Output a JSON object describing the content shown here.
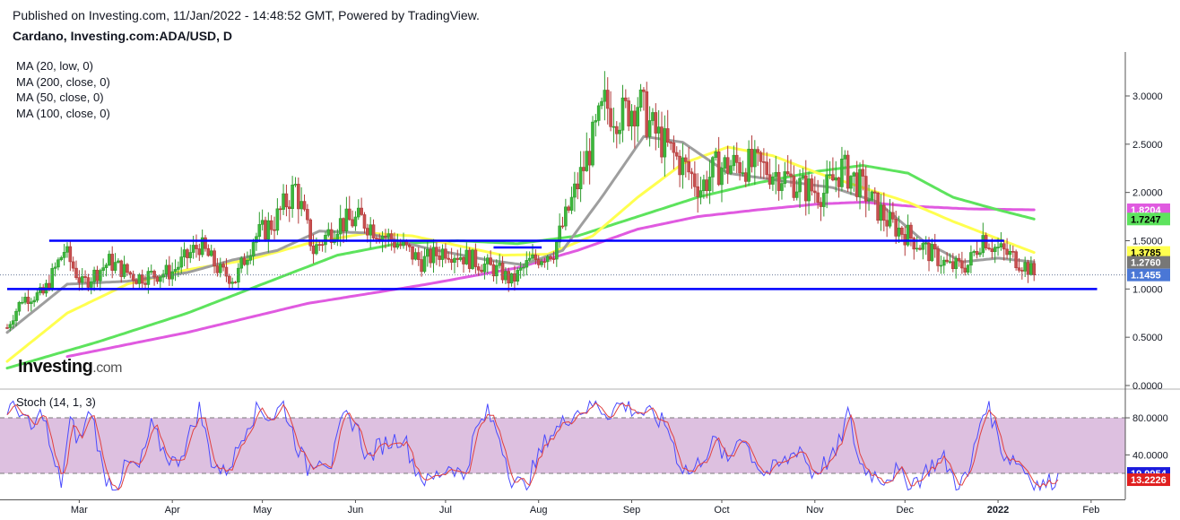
{
  "header": {
    "published": "Published on Investing.com, 11/Jan/2022 - 14:48:52 GMT, Powered by TradingView.",
    "symbol": "Cardano, Investing.com:ADA/USD, D"
  },
  "legend": {
    "ma": [
      "MA (20, low, 0)",
      "MA (200, close, 0)",
      "MA (50, close, 0)",
      "MA (100, close, 0)"
    ],
    "stoch": "Stoch (14, 1, 3)"
  },
  "logo": {
    "brand": "Investing",
    "suffix": ".com"
  },
  "colors": {
    "ma20_low": "#9e9e9e",
    "ma200_close": "#e05ae0",
    "ma50_close": "#ffff4f",
    "ma100_close": "#5de35d",
    "support_resistance": "#0000ff",
    "candle_up": "#2e9c2e",
    "candle_down": "#b23a3a",
    "stoch_k": "#4a4aff",
    "stoch_d": "#e04040",
    "stoch_band": "#d9b9dd"
  },
  "chart_data": [
    {
      "type": "candlestick",
      "ylim": [
        0,
        3.4
      ],
      "yticks": [
        0,
        0.5,
        1.0,
        1.5,
        2.0,
        2.5,
        3.0
      ],
      "ytick_labels": [
        "0.0000",
        "0.5000",
        "1.0000",
        "1.5000",
        "2.0000",
        "2.5000",
        "3.0000"
      ],
      "x_range": [
        "2022-02-05",
        "2022-02-05"
      ],
      "xticks": [
        {
          "label": "Mar",
          "day": 24
        },
        {
          "label": "Apr",
          "day": 55
        },
        {
          "label": "May",
          "day": 85
        },
        {
          "label": "Jun",
          "day": 116
        },
        {
          "label": "Jul",
          "day": 146
        },
        {
          "label": "Aug",
          "day": 177
        },
        {
          "label": "Sep",
          "day": 208
        },
        {
          "label": "Oct",
          "day": 238
        },
        {
          "label": "Nov",
          "day": 269
        },
        {
          "label": "Dec",
          "day": 299
        },
        {
          "label": "2022",
          "day": 330
        },
        {
          "label": "Feb",
          "day": 361
        }
      ],
      "day_range": [
        0,
        370
      ],
      "price_keypoints": [
        [
          0,
          0.6
        ],
        [
          5,
          0.9
        ],
        [
          12,
          0.95
        ],
        [
          19,
          1.4
        ],
        [
          25,
          1.05
        ],
        [
          34,
          1.28
        ],
        [
          43,
          1.12
        ],
        [
          55,
          1.18
        ],
        [
          64,
          1.46
        ],
        [
          71,
          1.18
        ],
        [
          76,
          1.1
        ],
        [
          82,
          1.52
        ],
        [
          89,
          1.7
        ],
        [
          96,
          2.05
        ],
        [
          102,
          1.4
        ],
        [
          110,
          1.68
        ],
        [
          118,
          1.72
        ],
        [
          126,
          1.55
        ],
        [
          132,
          1.43
        ],
        [
          138,
          1.28
        ],
        [
          146,
          1.41
        ],
        [
          155,
          1.3
        ],
        [
          164,
          1.18
        ],
        [
          168,
          1.08
        ],
        [
          174,
          1.28
        ],
        [
          182,
          1.4
        ],
        [
          187,
          1.82
        ],
        [
          193,
          2.35
        ],
        [
          199,
          2.9
        ],
        [
          205,
          2.8
        ],
        [
          210,
          2.95
        ],
        [
          215,
          2.65
        ],
        [
          220,
          2.45
        ],
        [
          226,
          2.25
        ],
        [
          231,
          2.05
        ],
        [
          236,
          2.25
        ],
        [
          244,
          2.3
        ],
        [
          252,
          2.25
        ],
        [
          258,
          2.18
        ],
        [
          265,
          2.05
        ],
        [
          272,
          2.0
        ],
        [
          278,
          2.25
        ],
        [
          284,
          2.08
        ],
        [
          288,
          1.9
        ],
        [
          294,
          1.68
        ],
        [
          300,
          1.56
        ],
        [
          307,
          1.38
        ],
        [
          314,
          1.23
        ],
        [
          320,
          1.25
        ],
        [
          325,
          1.55
        ],
        [
          329,
          1.43
        ],
        [
          335,
          1.33
        ],
        [
          340,
          1.22
        ],
        [
          342,
          1.1455
        ]
      ],
      "moving_averages": [
        {
          "name": "MA (20, low, 0)",
          "color_key": "ma20_low",
          "points": [
            [
              0,
              0.55
            ],
            [
              20,
              1.05
            ],
            [
              40,
              1.08
            ],
            [
              60,
              1.17
            ],
            [
              75,
              1.3
            ],
            [
              90,
              1.4
            ],
            [
              104,
              1.6
            ],
            [
              120,
              1.58
            ],
            [
              140,
              1.42
            ],
            [
              160,
              1.3
            ],
            [
              172,
              1.25
            ],
            [
              185,
              1.4
            ],
            [
              198,
              1.95
            ],
            [
              212,
              2.58
            ],
            [
              225,
              2.52
            ],
            [
              240,
              2.2
            ],
            [
              258,
              2.12
            ],
            [
              275,
              2.05
            ],
            [
              290,
              1.9
            ],
            [
              305,
              1.5
            ],
            [
              318,
              1.28
            ],
            [
              330,
              1.32
            ],
            [
              342,
              1.28
            ]
          ]
        },
        {
          "name": "MA (50, close, 0)",
          "color_key": "ma50_close",
          "points": [
            [
              0,
              0.25
            ],
            [
              20,
              0.75
            ],
            [
              40,
              1.05
            ],
            [
              60,
              1.2
            ],
            [
              80,
              1.3
            ],
            [
              100,
              1.47
            ],
            [
              120,
              1.58
            ],
            [
              135,
              1.55
            ],
            [
              150,
              1.45
            ],
            [
              165,
              1.35
            ],
            [
              180,
              1.36
            ],
            [
              195,
              1.55
            ],
            [
              210,
              1.95
            ],
            [
              225,
              2.3
            ],
            [
              240,
              2.47
            ],
            [
              255,
              2.38
            ],
            [
              270,
              2.2
            ],
            [
              285,
              2.05
            ],
            [
              300,
              1.9
            ],
            [
              315,
              1.7
            ],
            [
              330,
              1.52
            ],
            [
              342,
              1.3785
            ]
          ]
        },
        {
          "name": "MA (100, close, 0)",
          "color_key": "ma100_close",
          "points": [
            [
              0,
              0.18
            ],
            [
              30,
              0.45
            ],
            [
              60,
              0.75
            ],
            [
              85,
              1.05
            ],
            [
              110,
              1.35
            ],
            [
              130,
              1.47
            ],
            [
              150,
              1.5
            ],
            [
              170,
              1.47
            ],
            [
              190,
              1.55
            ],
            [
              210,
              1.75
            ],
            [
              230,
              1.95
            ],
            [
              250,
              2.1
            ],
            [
              270,
              2.22
            ],
            [
              285,
              2.28
            ],
            [
              300,
              2.2
            ],
            [
              315,
              1.95
            ],
            [
              330,
              1.82
            ],
            [
              342,
              1.7247
            ]
          ]
        },
        {
          "name": "MA (200, close, 0)",
          "color_key": "ma200_close",
          "points": [
            [
              20,
              0.3
            ],
            [
              60,
              0.55
            ],
            [
              100,
              0.85
            ],
            [
              140,
              1.05
            ],
            [
              170,
              1.22
            ],
            [
              190,
              1.4
            ],
            [
              210,
              1.62
            ],
            [
              230,
              1.75
            ],
            [
              250,
              1.82
            ],
            [
              270,
              1.88
            ],
            [
              285,
              1.9
            ],
            [
              300,
              1.86
            ],
            [
              320,
              1.83
            ],
            [
              342,
              1.8204
            ]
          ]
        }
      ],
      "horizontal_lines": [
        {
          "value": 1.5,
          "from_day": 14,
          "to_day": 332
        },
        {
          "value": 1.0,
          "from_day": 0,
          "to_day": 363
        },
        {
          "value": 1.43,
          "from_day": 162,
          "to_day": 178
        }
      ],
      "last_price_line": 1.1455,
      "price_labels": [
        {
          "text": "1.8204",
          "value": 1.8204,
          "bg": "#e05ae0",
          "fg": "#ffffff"
        },
        {
          "text": "1.7247",
          "value": 1.7247,
          "bg": "#5de35d",
          "fg": "#000000"
        },
        {
          "text": "1.3785",
          "value": 1.3785,
          "bg": "#ffff4f",
          "fg": "#000000"
        },
        {
          "text": "1.2760",
          "value": 1.276,
          "bg": "#777777",
          "fg": "#ffffff"
        },
        {
          "text": "1.1455",
          "value": 1.1455,
          "bg": "#4a77d6",
          "fg": "#ffffff"
        }
      ]
    },
    {
      "type": "line",
      "name": "Stoch (14, 1, 3)",
      "ylim": [
        0,
        100
      ],
      "yticks": [
        40,
        80
      ],
      "ytick_labels": [
        "40.0000",
        "80.0000"
      ],
      "band": [
        20,
        80
      ],
      "k_keypoints": [
        [
          0,
          90
        ],
        [
          4,
          90
        ],
        [
          8,
          65
        ],
        [
          12,
          88
        ],
        [
          15,
          35
        ],
        [
          18,
          10
        ],
        [
          21,
          75
        ],
        [
          24,
          55
        ],
        [
          28,
          90
        ],
        [
          32,
          20
        ],
        [
          36,
          5
        ],
        [
          40,
          30
        ],
        [
          44,
          25
        ],
        [
          48,
          70
        ],
        [
          52,
          45
        ],
        [
          56,
          30
        ],
        [
          60,
          55
        ],
        [
          64,
          90
        ],
        [
          68,
          35
        ],
        [
          72,
          20
        ],
        [
          76,
          40
        ],
        [
          80,
          75
        ],
        [
          84,
          90
        ],
        [
          88,
          80
        ],
        [
          92,
          95
        ],
        [
          96,
          55
        ],
        [
          100,
          25
        ],
        [
          104,
          40
        ],
        [
          108,
          30
        ],
        [
          112,
          80
        ],
        [
          116,
          75
        ],
        [
          120,
          35
        ],
        [
          124,
          50
        ],
        [
          128,
          55
        ],
        [
          132,
          60
        ],
        [
          136,
          25
        ],
        [
          140,
          10
        ],
        [
          144,
          20
        ],
        [
          148,
          30
        ],
        [
          152,
          15
        ],
        [
          156,
          65
        ],
        [
          160,
          85
        ],
        [
          164,
          60
        ],
        [
          168,
          15
        ],
        [
          172,
          5
        ],
        [
          176,
          30
        ],
        [
          180,
          60
        ],
        [
          184,
          70
        ],
        [
          188,
          85
        ],
        [
          192,
          90
        ],
        [
          196,
          95
        ],
        [
          200,
          85
        ],
        [
          204,
          95
        ],
        [
          208,
          90
        ],
        [
          212,
          85
        ],
        [
          216,
          80
        ],
        [
          220,
          70
        ],
        [
          224,
          30
        ],
        [
          228,
          20
        ],
        [
          232,
          40
        ],
        [
          236,
          55
        ],
        [
          240,
          30
        ],
        [
          244,
          65
        ],
        [
          248,
          40
        ],
        [
          252,
          20
        ],
        [
          256,
          25
        ],
        [
          260,
          35
        ],
        [
          264,
          50
        ],
        [
          268,
          20
        ],
        [
          272,
          30
        ],
        [
          276,
          40
        ],
        [
          280,
          85
        ],
        [
          284,
          30
        ],
        [
          288,
          20
        ],
        [
          292,
          15
        ],
        [
          296,
          22
        ],
        [
          300,
          10
        ],
        [
          304,
          15
        ],
        [
          308,
          30
        ],
        [
          312,
          35
        ],
        [
          316,
          10
        ],
        [
          320,
          15
        ],
        [
          324,
          75
        ],
        [
          326,
          95
        ],
        [
          328,
          80
        ],
        [
          332,
          40
        ],
        [
          336,
          35
        ],
        [
          340,
          20
        ],
        [
          344,
          5
        ],
        [
          348,
          12
        ],
        [
          350,
          19.9954
        ]
      ],
      "k_last": 19.9954,
      "d_last": 13.2226,
      "price_labels": [
        {
          "text": "19.9954",
          "value": 19.9954,
          "bg": "#1b1bdc",
          "fg": "#ffffff"
        },
        {
          "text": "13.2226",
          "value": 13.2226,
          "bg": "#e02020",
          "fg": "#ffffff"
        }
      ]
    }
  ]
}
